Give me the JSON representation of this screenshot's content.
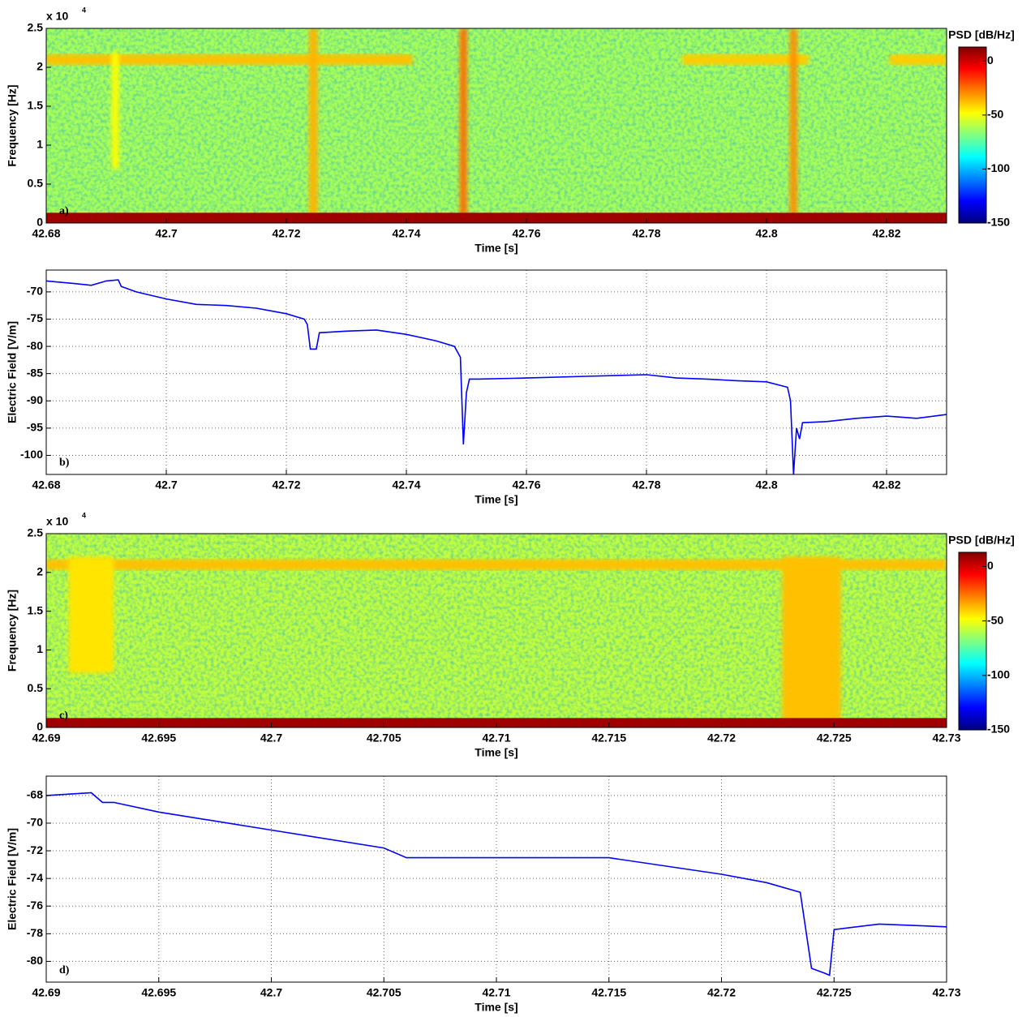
{
  "chart_data": [
    {
      "type": "spectrogram",
      "panel_label": "a)",
      "xlabel": "Time [s]",
      "ylabel": "Frequency [Hz]",
      "y_multiplier": "x 10",
      "y_multiplier_exp": "4",
      "xlim": [
        42.68,
        42.83
      ],
      "xticks": [
        42.68,
        42.7,
        42.72,
        42.74,
        42.76,
        42.78,
        42.8,
        42.82
      ],
      "ylim": [
        0,
        25000
      ],
      "yticks": [
        0,
        {
          "value": 5000,
          "label": "0.5"
        },
        {
          "value": 10000,
          "label": "1"
        },
        {
          "value": 15000,
          "label": "1.5"
        },
        {
          "value": 20000,
          "label": "2"
        },
        {
          "value": 25000,
          "label": "2.5"
        }
      ],
      "colormap": "jet",
      "clim": [
        -150,
        13
      ],
      "cticks": [
        0,
        -50,
        -100,
        -150
      ],
      "colorbar_label": "PSD [dB/Hz]",
      "background_psd": -62,
      "dc_band": {
        "f": [
          0,
          900
        ],
        "psd": 8
      },
      "lines": [
        {
          "t": [
            42.68,
            42.741
          ],
          "f": [
            20300,
            21700
          ],
          "psd": -38
        },
        {
          "t": [
            42.786,
            42.807
          ],
          "f": [
            20300,
            21700
          ],
          "psd": -40
        },
        {
          "t": [
            42.8205,
            42.83
          ],
          "f": [
            20300,
            21700
          ],
          "psd": -40
        }
      ],
      "events": [
        {
          "t": 42.6915,
          "width": 0.0012,
          "f": [
            7000,
            22000
          ],
          "psd": -48
        },
        {
          "t": 42.7245,
          "width": 0.0014,
          "f": [
            0,
            25000
          ],
          "psd": -36
        },
        {
          "t": 42.7495,
          "width": 0.0012,
          "f": [
            0,
            25000
          ],
          "psd": -25
        },
        {
          "t": 42.8045,
          "width": 0.0012,
          "f": [
            0,
            25000
          ],
          "psd": -30
        }
      ]
    },
    {
      "type": "line",
      "panel_label": "b)",
      "xlabel": "Time [s]",
      "ylabel": "Electric Field [V/m]",
      "color": "#0000ff",
      "grid": true,
      "xlim": [
        42.68,
        42.83
      ],
      "xticks": [
        42.68,
        42.7,
        42.72,
        42.74,
        42.76,
        42.78,
        42.8,
        42.82
      ],
      "ylim": [
        -103.5,
        -66
      ],
      "yticks": [
        -100,
        -95,
        -90,
        -85,
        -80,
        -75,
        -70
      ],
      "x": [
        42.68,
        42.685,
        42.6875,
        42.69,
        42.692,
        42.6925,
        42.695,
        42.7,
        42.705,
        42.71,
        42.715,
        42.72,
        42.723,
        42.7235,
        42.724,
        42.725,
        42.7255,
        42.73,
        42.735,
        42.74,
        42.745,
        42.748,
        42.749,
        42.7495,
        42.75,
        42.7505,
        42.752,
        42.76,
        42.77,
        42.78,
        42.785,
        42.79,
        42.795,
        42.8,
        42.8035,
        42.804,
        42.8045,
        42.805,
        42.8055,
        42.806,
        42.81,
        42.815,
        42.82,
        42.825,
        42.83
      ],
      "values": [
        -68,
        -68.5,
        -68.8,
        -68,
        -67.8,
        -69,
        -70,
        -71.3,
        -72.3,
        -72.5,
        -73,
        -74,
        -75,
        -76,
        -80.5,
        -80.5,
        -77.5,
        -77.2,
        -77,
        -77.8,
        -79,
        -80,
        -82,
        -98,
        -88.5,
        -86,
        -86,
        -85.8,
        -85.5,
        -85.2,
        -85.8,
        -86,
        -86.3,
        -86.5,
        -87.5,
        -90,
        -103.5,
        -95,
        -97,
        -94,
        -93.8,
        -93.2,
        -92.8,
        -93.2,
        -92.5
      ]
    },
    {
      "type": "spectrogram",
      "panel_label": "c)",
      "xlabel": "Time [s]",
      "ylabel": "Frequency [Hz]",
      "y_multiplier": "x 10",
      "y_multiplier_exp": "4",
      "xlim": [
        42.69,
        42.73
      ],
      "xticks": [
        42.69,
        42.695,
        42.7,
        42.705,
        42.71,
        42.715,
        42.72,
        42.725,
        42.73
      ],
      "ylim": [
        0,
        25000
      ],
      "yticks": [
        0,
        {
          "value": 5000,
          "label": "0.5"
        },
        {
          "value": 10000,
          "label": "1"
        },
        {
          "value": 15000,
          "label": "1.5"
        },
        {
          "value": 20000,
          "label": "2"
        },
        {
          "value": 25000,
          "label": "2.5"
        }
      ],
      "colormap": "jet",
      "clim": [
        -150,
        13
      ],
      "cticks": [
        0,
        -50,
        -100,
        -150
      ],
      "colorbar_label": "PSD [dB/Hz]",
      "background_psd": -58,
      "dc_band": {
        "f": [
          0,
          800
        ],
        "psd": 8
      },
      "lines": [
        {
          "t": [
            42.69,
            42.73
          ],
          "f": [
            20300,
            21700
          ],
          "psd": -38
        }
      ],
      "events": [
        {
          "t": 42.692,
          "width": 0.002,
          "f": [
            7000,
            22000
          ],
          "psd": -44
        },
        {
          "t": 42.724,
          "width": 0.0026,
          "f": [
            0,
            22000
          ],
          "psd": -38
        }
      ]
    },
    {
      "type": "line",
      "panel_label": "d)",
      "xlabel": "Time [s]",
      "ylabel": "Electric Field [V/m]",
      "color": "#0000ff",
      "grid": true,
      "xlim": [
        42.69,
        42.73
      ],
      "xticks": [
        42.69,
        42.695,
        42.7,
        42.705,
        42.71,
        42.715,
        42.72,
        42.725,
        42.73
      ],
      "ylim": [
        -81.5,
        -66.6
      ],
      "yticks": [
        -80,
        -78,
        -76,
        -74,
        -72,
        -70,
        -68
      ],
      "x": [
        42.69,
        42.692,
        42.6925,
        42.693,
        42.695,
        42.7,
        42.705,
        42.706,
        42.71,
        42.715,
        42.72,
        42.722,
        42.7235,
        42.724,
        42.7245,
        42.7248,
        42.725,
        42.727,
        42.73
      ],
      "values": [
        -68,
        -67.8,
        -68.5,
        -68.5,
        -69.2,
        -70.5,
        -71.8,
        -72.5,
        -72.5,
        -72.5,
        -73.7,
        -74.3,
        -75,
        -80.5,
        -80.8,
        -81,
        -77.7,
        -77.3,
        -77.5
      ]
    }
  ]
}
